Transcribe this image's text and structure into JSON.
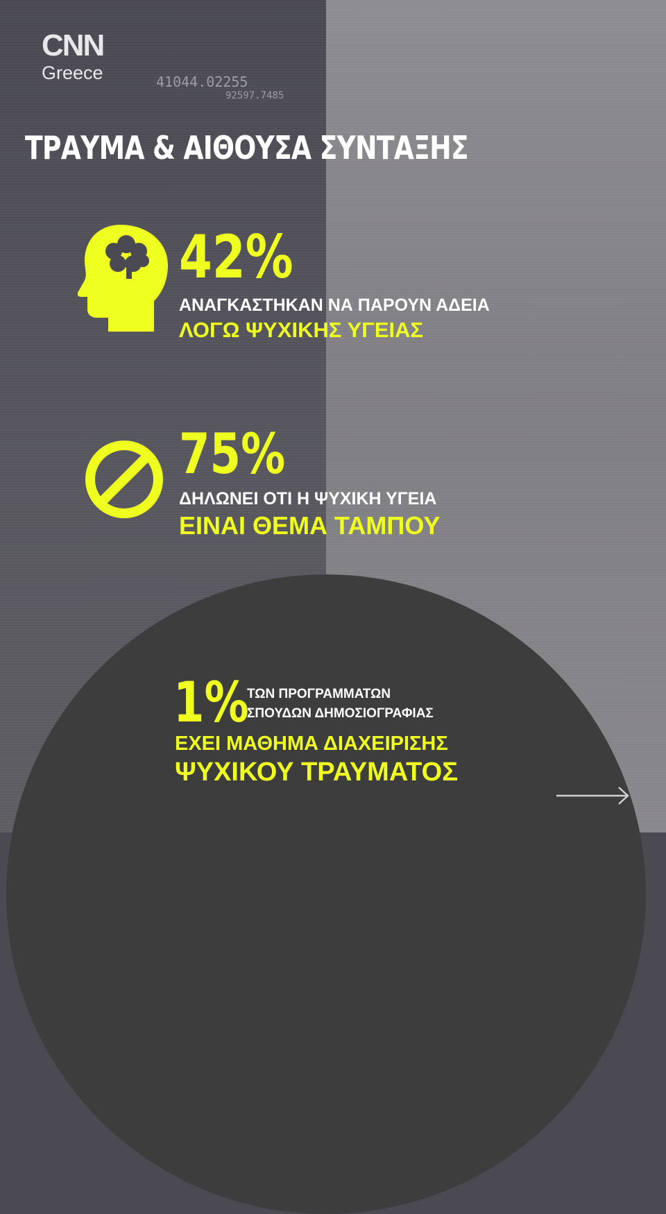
{
  "brand": {
    "logo_text": "CNN",
    "logo_subtitle": "Greece"
  },
  "background_numbers": [
    "41044.02255",
    "92597.7485"
  ],
  "title": "ΤΡΑΥΜΑ & ΑΙΘΟΥΣΑ ΣΥΝΤΑΞΗΣ",
  "stats": [
    {
      "icon": "head-brain-icon",
      "percent": "42%",
      "line1": "ΑΝΑΓΚΑΣΤΗΚΑΝ ΝΑ ΠΑΡΟΥΝ ΑΔΕΙΑ",
      "line2": "ΛΟΓΩ ΨΥΧΙΚΗΣ ΥΓΕΙΑΣ"
    },
    {
      "icon": "prohibited-icon",
      "percent": "75%",
      "line1": "ΔΗΛΩΝΕΙ ΟΤΙ Η ΨΥΧΙΚΗ ΥΓΕΙΑ",
      "line2": "ΕΙΝΑΙ ΘΕΜΑ ΤΑΜΠΟΥ"
    },
    {
      "percent": "1%",
      "line1": "ΤΩΝ ΠΡΟΓΡΑΜΜΑΤΩΝ",
      "line1b": "ΣΠΟΥΔΩΝ ΔΗΜΟΣΙΟΓΡΑΦΙΑΣ",
      "line2": "ΕΧΕΙ ΜΑΘΗΜΑ ΔΙΑΧΕΙΡΙΣΗΣ",
      "line3": "ΨΥΧΙΚΟΥ ΤΡΑΥΜΑΤΟΣ"
    }
  ],
  "next_icon": "arrow-right-icon",
  "colors": {
    "accent": "#efff1f",
    "dark": "#3d3d3e",
    "left_bg": "#4b4a52",
    "right_bg": "#8a898d"
  }
}
